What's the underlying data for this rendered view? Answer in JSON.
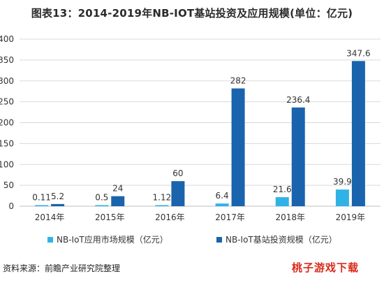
{
  "title": "图表13：2014-2019年NB-IOT基站投资及应用规模(单位：亿元)",
  "source": "资料来源：前瞻产业研究院整理",
  "logo_text": "桃子游戏下载",
  "colors": {
    "series_light": "#2fb3e6",
    "series_dark": "#1a63ad",
    "grid": "#d9d9d9",
    "text": "#333333"
  },
  "chart_data": {
    "type": "bar",
    "categories": [
      "2014年",
      "2015年",
      "2016年",
      "2017年",
      "2018年",
      "2019年"
    ],
    "ylim": [
      0,
      400
    ],
    "yticks": [
      0,
      50,
      100,
      150,
      200,
      250,
      300,
      350,
      400
    ],
    "grid": true,
    "legend_position": "bottom",
    "series": [
      {
        "name": "NB-IoT应用市场规模（亿元）",
        "values": [
          0.11,
          0.5,
          1.12,
          6.4,
          21.6,
          39.9
        ],
        "labels": [
          "0.11",
          "0.5",
          "1.12",
          "6.4",
          "21.6",
          "39.9"
        ]
      },
      {
        "name": "NB-IoT基站投资规模（亿元）",
        "values": [
          5.2,
          24,
          60,
          282,
          236.4,
          347.6
        ],
        "labels": [
          "5.2",
          "24",
          "60",
          "282",
          "236.4",
          "347.6"
        ]
      }
    ]
  }
}
